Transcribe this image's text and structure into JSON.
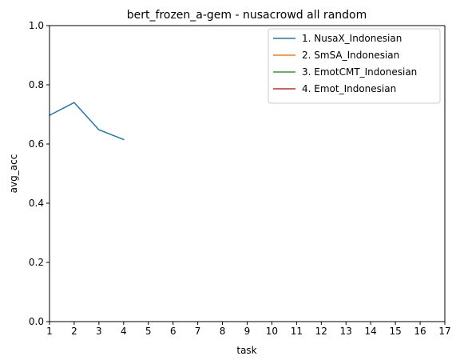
{
  "chart_data": {
    "type": "line",
    "title": "bert_frozen_a-gem - nusacrowd all random",
    "xlabel": "task",
    "ylabel": "avg_acc",
    "xlim": [
      1,
      17
    ],
    "ylim": [
      0.0,
      1.0
    ],
    "x_ticks": [
      "1",
      "2",
      "3",
      "4",
      "5",
      "6",
      "7",
      "8",
      "9",
      "10",
      "11",
      "12",
      "13",
      "14",
      "15",
      "16",
      "17"
    ],
    "y_ticks": [
      "0.0",
      "0.2",
      "0.4",
      "0.6",
      "0.8",
      "1.0"
    ],
    "grid": false,
    "legend_position": "top-right",
    "series": [
      {
        "name": "1. NusaX_Indonesian",
        "color": "#1f77b4",
        "x": [
          1,
          2,
          3,
          4
        ],
        "y": [
          0.697,
          0.74,
          0.648,
          0.615
        ]
      },
      {
        "name": "2. SmSA_Indonesian",
        "color": "#ff7f0e",
        "x": [],
        "y": []
      },
      {
        "name": "3. EmotCMT_Indonesian",
        "color": "#2ca02c",
        "x": [],
        "y": []
      },
      {
        "name": "4. Emot_Indonesian",
        "color": "#d62728",
        "x": [],
        "y": []
      }
    ]
  }
}
